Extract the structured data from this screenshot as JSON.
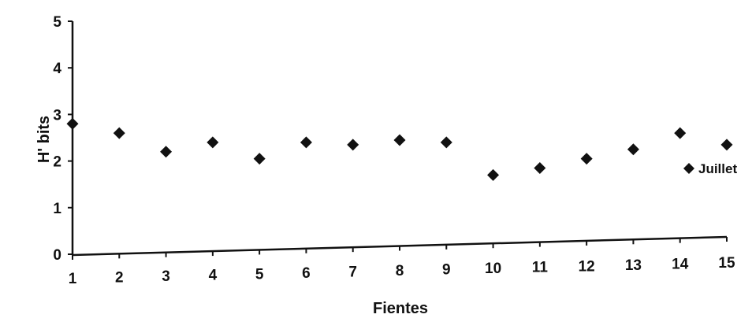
{
  "chart_data": {
    "type": "scatter",
    "title": "",
    "xlabel": "Fientes",
    "ylabel": "H' bits",
    "xlim": [
      1,
      15
    ],
    "ylim": [
      0,
      5
    ],
    "x_ticks": [
      "1",
      "2",
      "3",
      "4",
      "5",
      "6",
      "7",
      "8",
      "9",
      "10",
      "11",
      "12",
      "13",
      "14",
      "15"
    ],
    "y_ticks": [
      "0",
      "1",
      "2",
      "3",
      "4",
      "5"
    ],
    "grid": false,
    "legend": {
      "position": "right",
      "entries": [
        "Juillet"
      ]
    },
    "series": [
      {
        "name": "Juillet",
        "color": "#111111",
        "marker": "diamond",
        "x": [
          1,
          2,
          3,
          4,
          5,
          6,
          7,
          8,
          9,
          10,
          11,
          12,
          13,
          14,
          15
        ],
        "y": [
          2.8,
          2.6,
          2.2,
          2.4,
          2.05,
          2.4,
          2.35,
          2.45,
          2.4,
          1.7,
          1.85,
          2.05,
          2.25,
          2.6,
          2.35
        ]
      }
    ]
  }
}
